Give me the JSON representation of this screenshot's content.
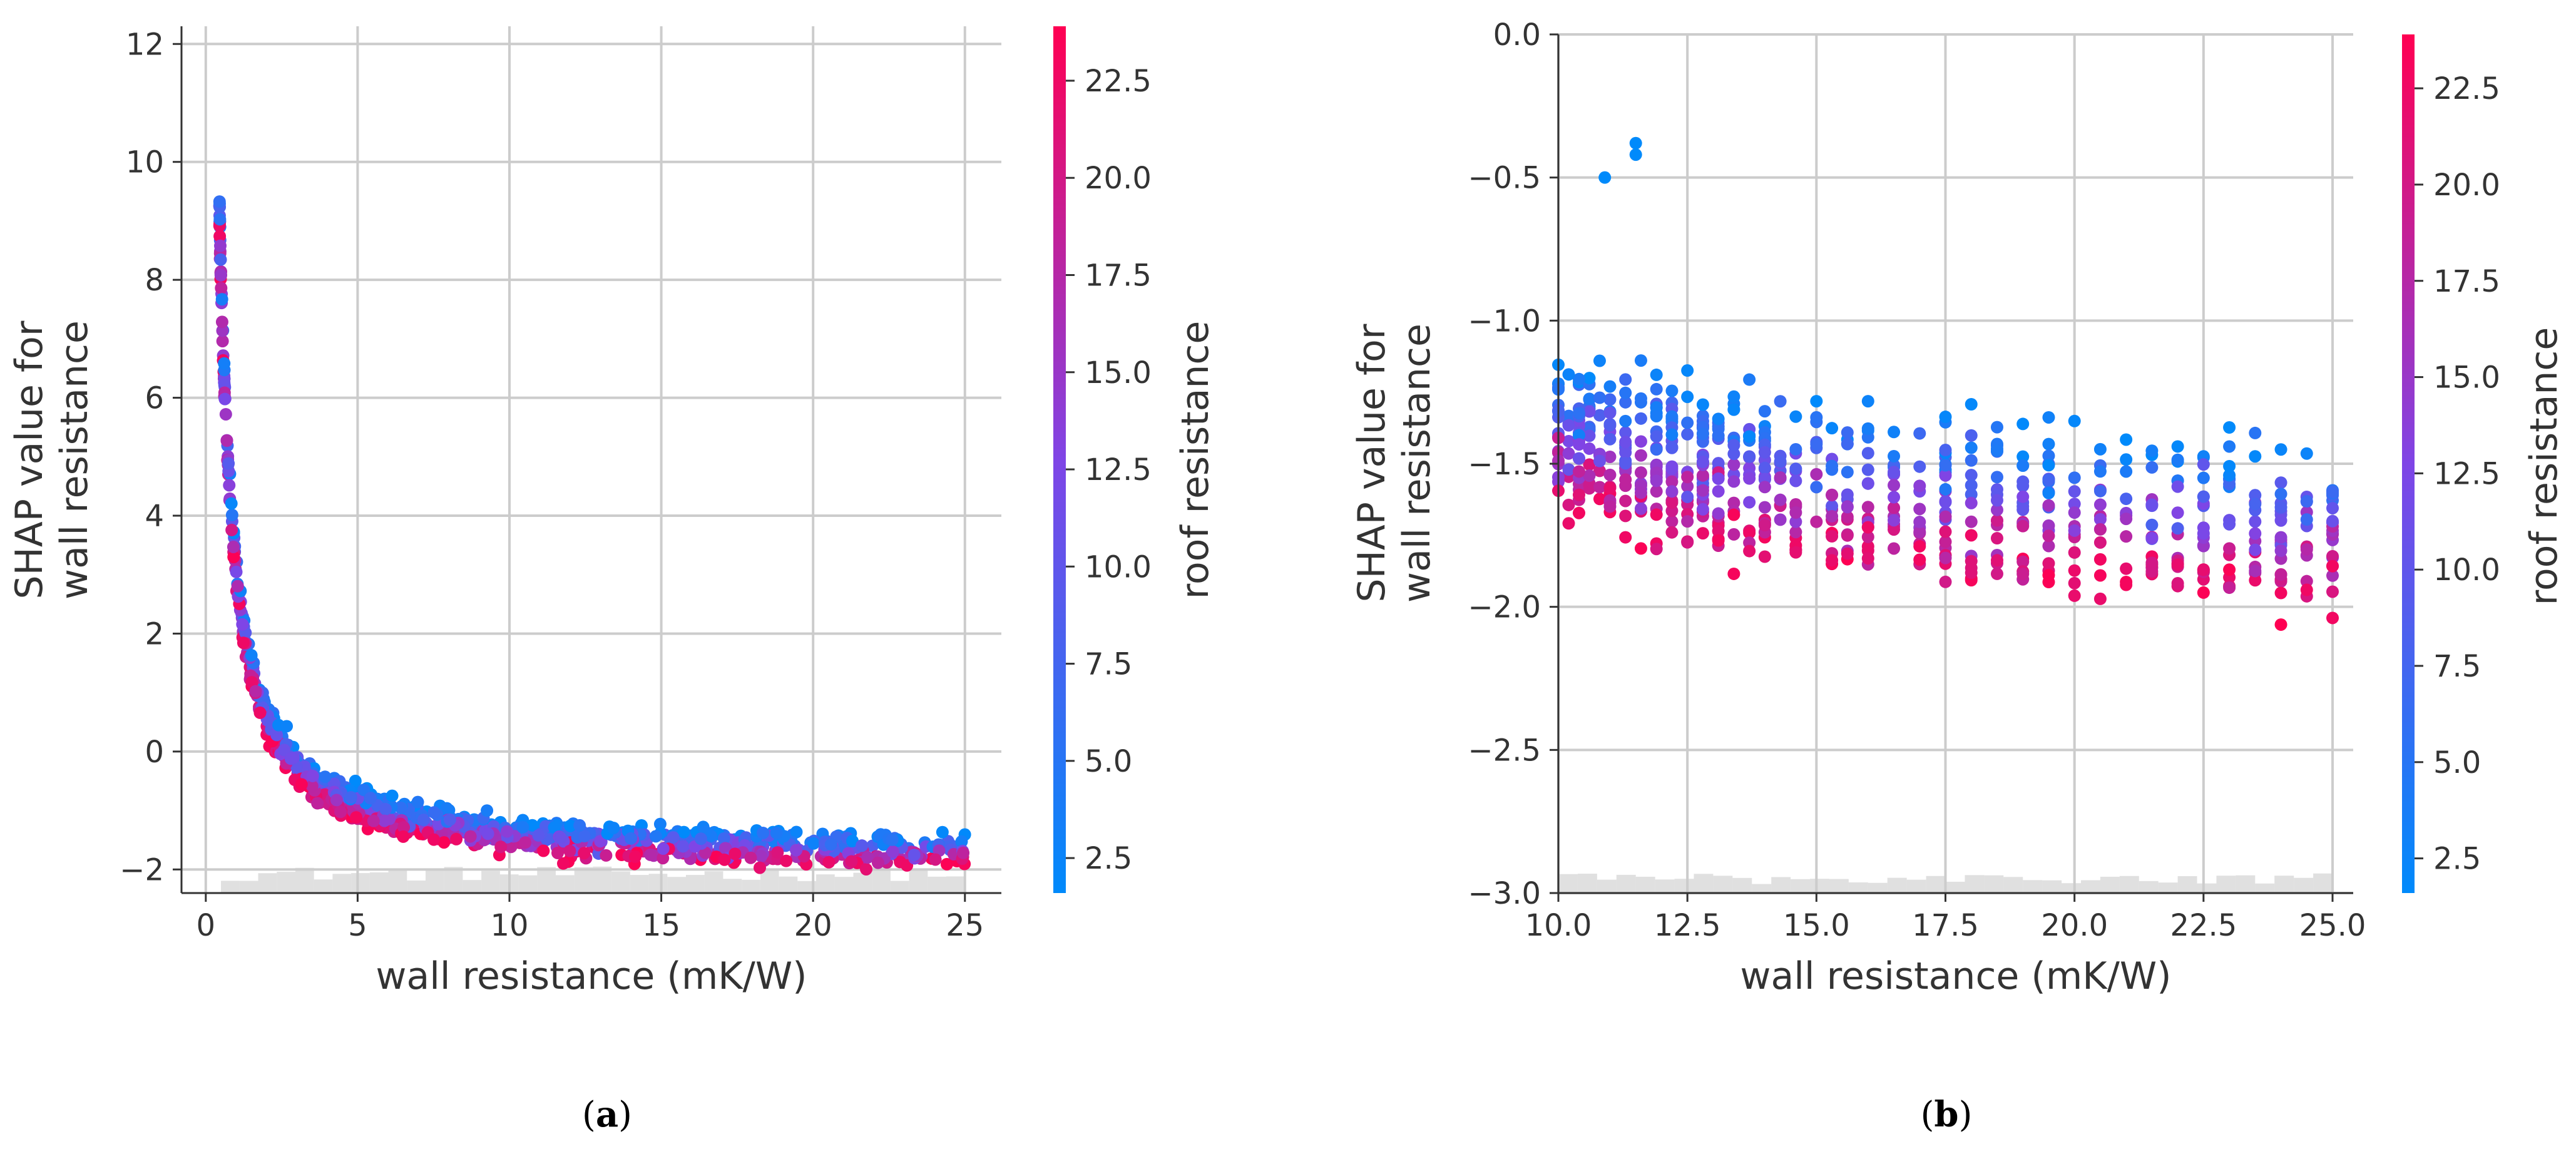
{
  "colors": {
    "low": "#008afb",
    "mid": "#7f45e6",
    "high": "#ff0052",
    "grid": "#cccccc",
    "hist": "#cccccc",
    "text": "#333333"
  },
  "chart_data": [
    {
      "id": "a",
      "type": "scatter",
      "panel_caption": "a",
      "xlabel": "wall resistance (mK/W)",
      "ylabel_lines": [
        "SHAP value for",
        "wall resistance"
      ],
      "xlim": [
        -0.8,
        26.2
      ],
      "ylim": [
        -2.4,
        12.3
      ],
      "xticks": [
        0,
        5,
        10,
        15,
        20,
        25
      ],
      "xtick_labels": [
        "0",
        "5",
        "10",
        "15",
        "20",
        "25"
      ],
      "yticks": [
        -2,
        0,
        2,
        4,
        6,
        8,
        10,
        12
      ],
      "ytick_labels": [
        "−2",
        "0",
        "2",
        "4",
        "6",
        "8",
        "10",
        "12"
      ],
      "colorbar": {
        "label": "roof resistance",
        "range": [
          1.6,
          23.9
        ],
        "ticks": [
          2.5,
          5.0,
          7.5,
          10.0,
          12.5,
          15.0,
          17.5,
          20.0,
          22.5
        ],
        "tick_labels": [
          "2.5",
          "5.0",
          "7.5",
          "10.0",
          "12.5",
          "15.0",
          "17.5",
          "20.0",
          "22.5"
        ]
      },
      "curve": {
        "form": "y = a / x + b",
        "a": 5.0,
        "b": -1.9,
        "x_range": [
          0.45,
          25
        ],
        "spread": 0.12,
        "color_slope": 0.022,
        "point_count": 900
      },
      "histogram": {
        "x_range": [
          0.5,
          25
        ],
        "bins": 40,
        "base": -2.4,
        "max_height": 0.45
      }
    },
    {
      "id": "b",
      "type": "scatter",
      "panel_caption": "b",
      "xlabel": "wall resistance (mK/W)",
      "ylabel_lines": [
        "SHAP value for",
        "wall resistance"
      ],
      "xlim": [
        10.0,
        25.4
      ],
      "ylim": [
        -3.0,
        0.0
      ],
      "xticks": [
        10.0,
        12.5,
        15.0,
        17.5,
        20.0,
        22.5,
        25.0
      ],
      "xtick_labels": [
        "10.0",
        "12.5",
        "15.0",
        "17.5",
        "20.0",
        "22.5",
        "25.0"
      ],
      "yticks": [
        -3.0,
        -2.5,
        -2.0,
        -1.5,
        -1.0,
        -0.5,
        0.0
      ],
      "ytick_labels": [
        "−3.0",
        "−2.5",
        "−2.0",
        "−1.5",
        "−1.0",
        "−0.5",
        "0.0"
      ],
      "colorbar": {
        "label": "roof resistance",
        "range": [
          1.6,
          23.9
        ],
        "ticks": [
          2.5,
          5.0,
          7.5,
          10.0,
          12.5,
          15.0,
          17.5,
          20.0,
          22.5
        ],
        "tick_labels": [
          "2.5",
          "5.0",
          "7.5",
          "10.0",
          "12.5",
          "15.0",
          "17.5",
          "20.0",
          "22.5"
        ]
      },
      "curve": {
        "form": "y = a / x + b",
        "a": 5.0,
        "b": -1.9,
        "x_range": [
          10,
          25
        ],
        "spread": 0.1,
        "color_slope": 0.022,
        "point_count": 700,
        "discrete_x": [
          10.0,
          10.2,
          10.4,
          10.6,
          10.8,
          11.0,
          11.3,
          11.6,
          11.9,
          12.2,
          12.5,
          12.8,
          13.1,
          13.4,
          13.7,
          14.0,
          14.3,
          14.6,
          15.0,
          15.3,
          15.6,
          16.0,
          16.5,
          17.0,
          17.5,
          18.0,
          18.5,
          19.0,
          19.5,
          20.0,
          20.5,
          21.0,
          21.5,
          22.0,
          22.5,
          23.0,
          23.5,
          24.0,
          24.5,
          25.0
        ],
        "outliers": [
          {
            "x": 11.5,
            "y": -0.38
          },
          {
            "x": 11.5,
            "y": -0.42
          },
          {
            "x": 10.9,
            "y": -0.5
          }
        ]
      },
      "histogram": {
        "x_range": [
          10,
          25
        ],
        "bins": 40,
        "base": -3.0,
        "max_height": 0.07
      }
    }
  ]
}
